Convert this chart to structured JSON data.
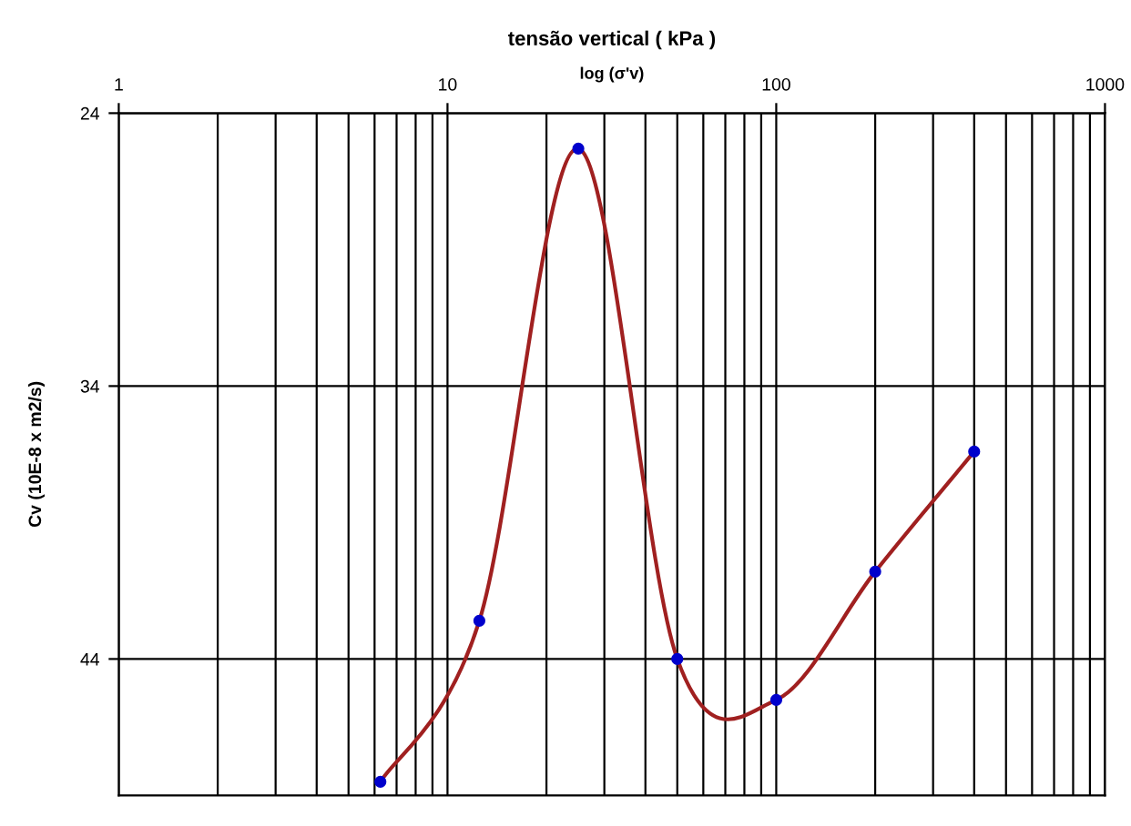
{
  "chart_data": {
    "type": "line",
    "title": "tensão vertical ( kPa )",
    "subtitle": "log (σ'v)",
    "ylabel": "Cv (10E-8 x m2/s)",
    "x": [
      6.25,
      12.5,
      25,
      50,
      100,
      200,
      400
    ],
    "series": [
      {
        "type": "line",
        "color": "#a02020",
        "marker": "none",
        "values": [
          48.5,
          42.6,
          25.3,
          44.0,
          45.5,
          40.8,
          36.4
        ]
      },
      {
        "type": "scatter",
        "color": "#0000cc",
        "marker": "circle",
        "values": [
          48.5,
          42.6,
          25.3,
          44.0,
          45.5,
          40.8,
          36.4
        ]
      }
    ],
    "log": "x",
    "xlim": [
      1,
      1000
    ],
    "xticks": [
      1,
      10,
      100,
      1000
    ],
    "ylim": [
      49,
      24
    ],
    "yticks": [
      24,
      34,
      44
    ],
    "grid": true,
    "legend": false
  }
}
